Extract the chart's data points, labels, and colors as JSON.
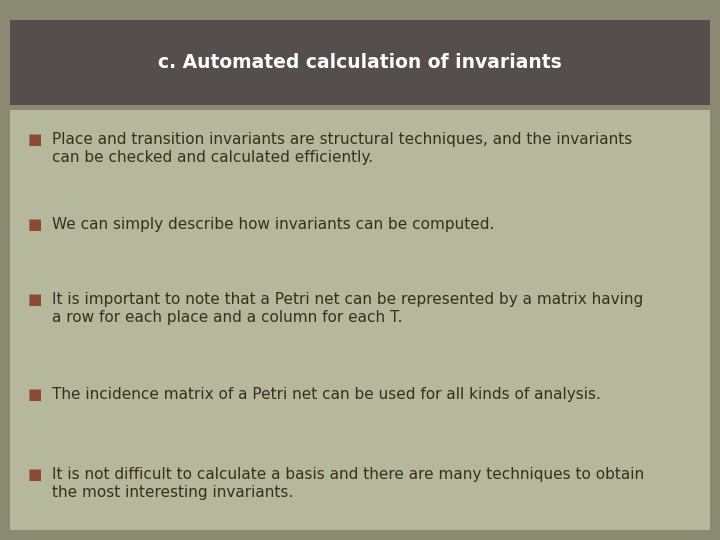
{
  "title": "c. Automated calculation of invariants",
  "outer_bg_color": "#8a8a72",
  "title_bg_color": "#564d4d",
  "title_text_color": "#ffffff",
  "body_bg_color": "#b5b89a",
  "bullet_color": "#8b4a32",
  "text_color": "#3a2e22",
  "title_fontsize": 13.5,
  "body_fontsize": 11.0,
  "bullets": [
    "Place and transition invariants are structural techniques, and the invariants\ncan be checked and calculated efficiently.",
    "We can simply describe how invariants can be computed.",
    "It is important to note that a Petri net can be represented by a matrix having\na row for each place and a column for each T.",
    "The incidence matrix of a Petri net can be used for all kinds of analysis.",
    "It is not difficult to calculate a basis and there are many techniques to obtain\nthe most interesting invariants."
  ],
  "fig_width": 7.2,
  "fig_height": 5.4,
  "dpi": 100
}
